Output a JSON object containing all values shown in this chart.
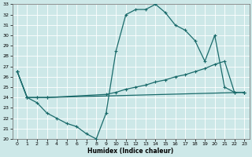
{
  "xlabel": "Humidex (Indice chaleur)",
  "ylabel": "",
  "bg_color": "#cde8e8",
  "grid_color": "#ffffff",
  "line_color": "#1a6b6b",
  "xlim": [
    -0.5,
    23.5
  ],
  "ylim": [
    20,
    33
  ],
  "xticks": [
    0,
    1,
    2,
    3,
    4,
    5,
    6,
    7,
    8,
    9,
    10,
    11,
    12,
    13,
    14,
    15,
    16,
    17,
    18,
    19,
    20,
    21,
    22,
    23
  ],
  "yticks": [
    20,
    21,
    22,
    23,
    24,
    25,
    26,
    27,
    28,
    29,
    30,
    31,
    32,
    33
  ],
  "line1_x": [
    0,
    1,
    2,
    3,
    4,
    5,
    6,
    7,
    8,
    9,
    10,
    11,
    12,
    13,
    14,
    15,
    16,
    17,
    18,
    19,
    20,
    21,
    22,
    23
  ],
  "line1_y": [
    26.5,
    24.0,
    23.5,
    22.5,
    22.0,
    21.5,
    21.2,
    20.5,
    20.0,
    22.5,
    28.5,
    32.0,
    32.5,
    32.5,
    33.0,
    32.2,
    31.0,
    30.5,
    29.5,
    27.5,
    30.0,
    25.0,
    24.5,
    24.5
  ],
  "line2_x": [
    0,
    1,
    2,
    3,
    23
  ],
  "line2_y": [
    26.5,
    24.0,
    24.0,
    24.0,
    24.5
  ],
  "line3_x": [
    0,
    1,
    2,
    3,
    9,
    10,
    11,
    12,
    13,
    14,
    15,
    16,
    17,
    18,
    19,
    20,
    21,
    22,
    23
  ],
  "line3_y": [
    26.5,
    24.0,
    24.0,
    24.0,
    24.3,
    24.5,
    24.8,
    25.0,
    25.2,
    25.5,
    25.7,
    26.0,
    26.2,
    26.5,
    26.8,
    27.2,
    27.5,
    24.5,
    24.5
  ]
}
